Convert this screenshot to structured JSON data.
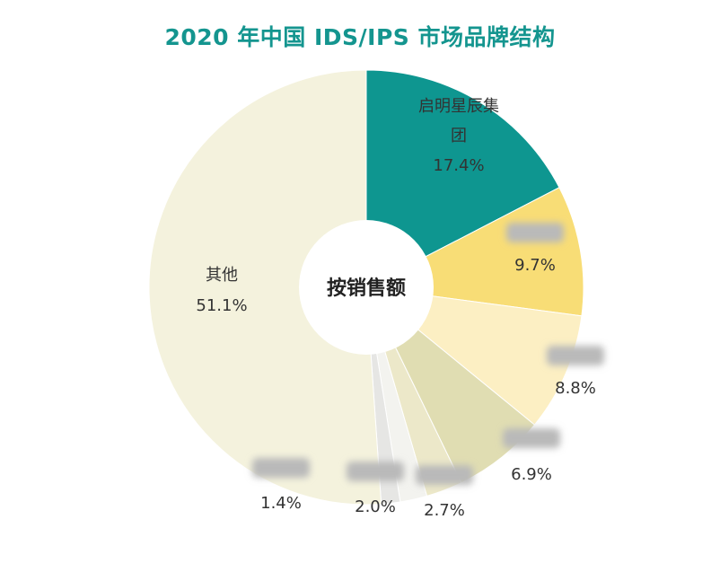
{
  "chart_data": {
    "type": "pie",
    "title": "2020 年中国 IDS/IPS 市场品牌结构",
    "center_label": "按销售额",
    "slices": [
      {
        "label_lines": [
          "启明星辰集",
          "团"
        ],
        "value": 17.4,
        "value_text": "17.4%",
        "color": "#0e9690",
        "label_redacted": false
      },
      {
        "label_lines": [
          ""
        ],
        "value": 9.7,
        "value_text": "9.7%",
        "color": "#f8dd76",
        "label_redacted": true
      },
      {
        "label_lines": [
          ""
        ],
        "value": 8.8,
        "value_text": "8.8%",
        "color": "#fcefc3",
        "label_redacted": true
      },
      {
        "label_lines": [
          ""
        ],
        "value": 6.9,
        "value_text": "6.9%",
        "color": "#e0ddb2",
        "label_redacted": true
      },
      {
        "label_lines": [
          ""
        ],
        "value": 2.7,
        "value_text": "2.7%",
        "color": "#ece8c9",
        "label_redacted": true
      },
      {
        "label_lines": [
          ""
        ],
        "value": 2.0,
        "value_text": "2.0%",
        "color": "#f3f3ef",
        "label_redacted": true
      },
      {
        "label_lines": [
          ""
        ],
        "value": 1.4,
        "value_text": "1.4%",
        "color": "#e6e6e4",
        "label_redacted": true
      },
      {
        "label_lines": [
          "其他"
        ],
        "value": 51.1,
        "value_text": "51.1%",
        "color": "#f4f2dd",
        "label_redacted": false
      }
    ]
  }
}
